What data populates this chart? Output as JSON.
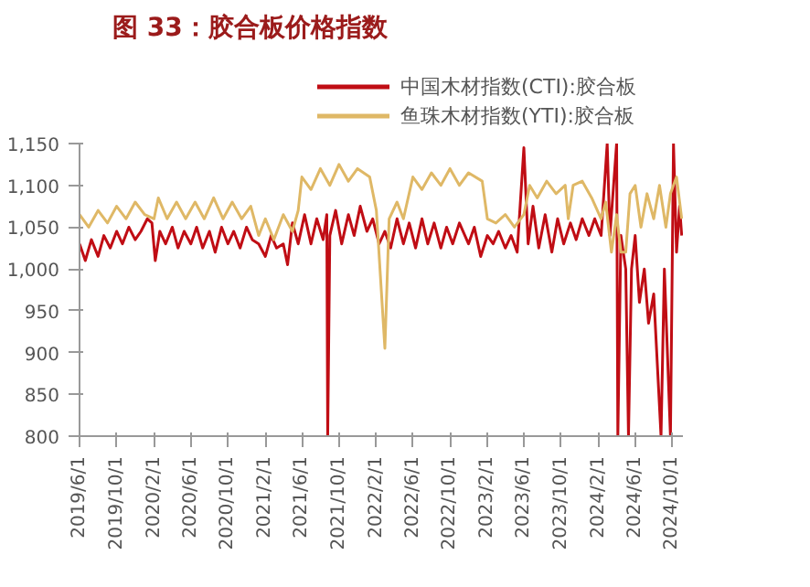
{
  "chart_data": {
    "type": "line",
    "title": "图 33：胶合板价格指数",
    "xlim": [
      "2019-06-01",
      "2024-11-05"
    ],
    "ylim": [
      800,
      1150
    ],
    "xticks": [
      {
        "value": "2019-06-01",
        "label": "2019/6/1"
      },
      {
        "value": "2019-10-01",
        "label": "2019/10/1"
      },
      {
        "value": "2020-02-01",
        "label": "2020/2/1"
      },
      {
        "value": "2020-06-01",
        "label": "2020/6/1"
      },
      {
        "value": "2020-10-01",
        "label": "2020/10/1"
      },
      {
        "value": "2021-02-01",
        "label": "2021/2/1"
      },
      {
        "value": "2021-06-01",
        "label": "2021/6/1"
      },
      {
        "value": "2021-10-01",
        "label": "2021/10/1"
      },
      {
        "value": "2022-02-01",
        "label": "2022/2/1"
      },
      {
        "value": "2022-06-01",
        "label": "2022/6/1"
      },
      {
        "value": "2022-10-01",
        "label": "2022/10/1"
      },
      {
        "value": "2023-02-01",
        "label": "2023/2/1"
      },
      {
        "value": "2023-06-01",
        "label": "2023/6/1"
      },
      {
        "value": "2023-10-01",
        "label": "2023/10/1"
      },
      {
        "value": "2024-02-01",
        "label": "2024/2/1"
      },
      {
        "value": "2024-06-01",
        "label": "2024/6/1"
      },
      {
        "value": "2024-10-01",
        "label": "2024/10/1"
      }
    ],
    "yticks": [
      800,
      850,
      900,
      950,
      {
        "value": 1000,
        "label": "1,000"
      },
      {
        "value": 1050,
        "label": "1,050"
      },
      {
        "value": 1100,
        "label": "1,100"
      },
      {
        "value": 1150,
        "label": "1,150"
      }
    ],
    "grid": false,
    "legend": "top",
    "marker": "none",
    "line_style": "solid",
    "series": [
      {
        "name": "中国木材指数(CTI):胶合板",
        "color": "#c00d14",
        "x": [
          "2019-06-01",
          "2019-06-20",
          "2019-07-10",
          "2019-08-01",
          "2019-08-20",
          "2019-09-10",
          "2019-10-01",
          "2019-10-20",
          "2019-11-10",
          "2019-12-01",
          "2019-12-20",
          "2020-01-10",
          "2020-01-25",
          "2020-02-05",
          "2020-02-20",
          "2020-03-10",
          "2020-04-01",
          "2020-04-20",
          "2020-05-10",
          "2020-06-01",
          "2020-06-20",
          "2020-07-10",
          "2020-08-01",
          "2020-08-20",
          "2020-09-10",
          "2020-10-01",
          "2020-10-20",
          "2020-11-10",
          "2020-12-01",
          "2020-12-20",
          "2021-01-10",
          "2021-02-01",
          "2021-02-20",
          "2021-03-10",
          "2021-04-01",
          "2021-04-15",
          "2021-05-01",
          "2021-05-20",
          "2021-06-10",
          "2021-07-01",
          "2021-07-20",
          "2021-08-10",
          "2021-08-22",
          "2021-08-25",
          "2021-09-01",
          "2021-09-20",
          "2021-10-10",
          "2021-11-01",
          "2021-11-20",
          "2021-12-10",
          "2022-01-01",
          "2022-01-20",
          "2022-02-10",
          "2022-03-01",
          "2022-03-20",
          "2022-04-10",
          "2022-05-01",
          "2022-05-20",
          "2022-06-10",
          "2022-07-01",
          "2022-07-20",
          "2022-08-10",
          "2022-09-01",
          "2022-09-20",
          "2022-10-10",
          "2022-11-01",
          "2022-12-01",
          "2022-12-20",
          "2023-01-10",
          "2023-02-01",
          "2023-02-20",
          "2023-03-10",
          "2023-04-01",
          "2023-04-20",
          "2023-05-10",
          "2023-06-01",
          "2023-06-15",
          "2023-07-01",
          "2023-07-20",
          "2023-08-10",
          "2023-09-01",
          "2023-09-20",
          "2023-10-10",
          "2023-11-01",
          "2023-11-20",
          "2023-12-10",
          "2024-01-01",
          "2024-01-20",
          "2024-02-10",
          "2024-03-01",
          "2024-03-10",
          "2024-04-01",
          "2024-04-05",
          "2024-04-15",
          "2024-05-01",
          "2024-05-10",
          "2024-05-20",
          "2024-06-01",
          "2024-06-15",
          "2024-07-01",
          "2024-07-15",
          "2024-08-01",
          "2024-08-25",
          "2024-09-05",
          "2024-09-25",
          "2024-10-05",
          "2024-10-15",
          "2024-10-25",
          "2024-11-01"
        ],
        "values": [
          1030,
          1010,
          1035,
          1015,
          1040,
          1025,
          1045,
          1030,
          1050,
          1035,
          1045,
          1060,
          1055,
          1010,
          1045,
          1030,
          1050,
          1025,
          1045,
          1030,
          1050,
          1025,
          1045,
          1020,
          1050,
          1030,
          1045,
          1025,
          1050,
          1035,
          1030,
          1015,
          1040,
          1025,
          1030,
          1005,
          1055,
          1030,
          1065,
          1030,
          1060,
          1035,
          1065,
          800,
          1040,
          1070,
          1030,
          1065,
          1040,
          1075,
          1045,
          1060,
          1030,
          1045,
          1025,
          1060,
          1030,
          1055,
          1025,
          1060,
          1030,
          1055,
          1025,
          1050,
          1030,
          1055,
          1030,
          1050,
          1015,
          1040,
          1030,
          1045,
          1025,
          1040,
          1020,
          1145,
          1030,
          1075,
          1025,
          1065,
          1020,
          1060,
          1030,
          1055,
          1035,
          1060,
          1040,
          1060,
          1040,
          1150,
          1040,
          1150,
          800,
          1040,
          1000,
          800,
          1000,
          1040,
          960,
          1000,
          935,
          970,
          800,
          1000,
          800,
          1150,
          1020,
          1075,
          1040
        ]
      },
      {
        "name": "鱼珠木材指数(YTI):胶合板",
        "color": "#dfb866",
        "x": [
          "2019-06-01",
          "2019-07-01",
          "2019-08-01",
          "2019-09-01",
          "2019-10-01",
          "2019-11-01",
          "2019-12-01",
          "2020-01-01",
          "2020-02-01",
          "2020-02-15",
          "2020-03-15",
          "2020-04-15",
          "2020-05-15",
          "2020-06-15",
          "2020-07-15",
          "2020-08-15",
          "2020-09-15",
          "2020-10-15",
          "2020-11-15",
          "2020-12-15",
          "2021-01-10",
          "2021-02-01",
          "2021-03-01",
          "2021-04-01",
          "2021-05-01",
          "2021-05-20",
          "2021-06-01",
          "2021-07-01",
          "2021-08-01",
          "2021-09-01",
          "2021-10-01",
          "2021-11-01",
          "2021-12-01",
          "2022-01-10",
          "2022-02-01",
          "2022-03-01",
          "2022-03-15",
          "2022-04-10",
          "2022-05-01",
          "2022-06-01",
          "2022-07-01",
          "2022-08-01",
          "2022-09-01",
          "2022-10-01",
          "2022-11-01",
          "2022-12-01",
          "2023-01-15",
          "2023-02-01",
          "2023-03-01",
          "2023-04-01",
          "2023-05-01",
          "2023-06-01",
          "2023-06-20",
          "2023-07-15",
          "2023-08-15",
          "2023-09-15",
          "2023-10-15",
          "2023-10-25",
          "2023-11-10",
          "2023-12-10",
          "2024-01-10",
          "2024-02-10",
          "2024-02-25",
          "2024-03-15",
          "2024-04-01",
          "2024-04-15",
          "2024-05-01",
          "2024-05-15",
          "2024-06-01",
          "2024-06-20",
          "2024-07-10",
          "2024-08-01",
          "2024-08-20",
          "2024-09-10",
          "2024-09-25",
          "2024-10-15",
          "2024-11-01"
        ],
        "values": [
          1065,
          1050,
          1070,
          1055,
          1075,
          1060,
          1080,
          1065,
          1060,
          1085,
          1060,
          1080,
          1060,
          1080,
          1060,
          1085,
          1060,
          1080,
          1060,
          1075,
          1040,
          1060,
          1035,
          1065,
          1045,
          1070,
          1110,
          1095,
          1120,
          1100,
          1125,
          1105,
          1120,
          1110,
          1070,
          905,
          1060,
          1080,
          1060,
          1110,
          1095,
          1115,
          1100,
          1120,
          1100,
          1115,
          1105,
          1060,
          1055,
          1065,
          1050,
          1065,
          1100,
          1085,
          1105,
          1090,
          1100,
          1060,
          1100,
          1105,
          1085,
          1060,
          1080,
          1020,
          1065,
          1020,
          1020,
          1090,
          1100,
          1050,
          1090,
          1060,
          1100,
          1050,
          1090,
          1110,
          1060
        ]
      }
    ]
  }
}
